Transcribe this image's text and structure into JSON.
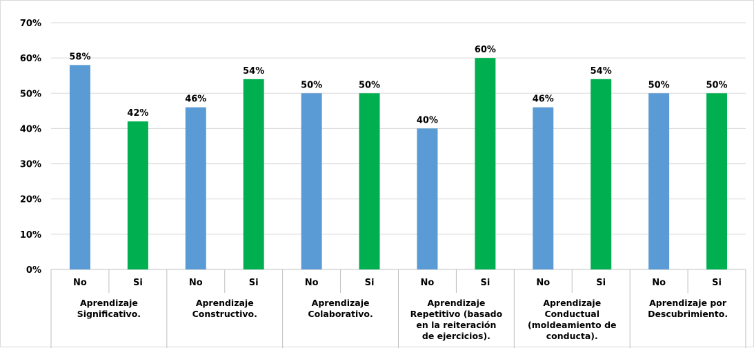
{
  "chart_data": {
    "type": "bar",
    "yticks": [
      "0%",
      "10%",
      "20%",
      "30%",
      "40%",
      "50%",
      "60%",
      "70%"
    ],
    "ylim": [
      0,
      70
    ],
    "grid": true,
    "series_colors": {
      "No": "#5b9bd5",
      "Si": "#00b050"
    },
    "groups": [
      {
        "label_lines": [
          "Aprendizaje",
          "Significativo."
        ],
        "bars": [
          {
            "category": "No",
            "value": 58,
            "label": "58%"
          },
          {
            "category": "Si",
            "value": 42,
            "label": "42%"
          }
        ]
      },
      {
        "label_lines": [
          "Aprendizaje",
          "Constructivo."
        ],
        "bars": [
          {
            "category": "No",
            "value": 46,
            "label": "46%"
          },
          {
            "category": "Si",
            "value": 54,
            "label": "54%"
          }
        ]
      },
      {
        "label_lines": [
          "Aprendizaje",
          "Colaborativo."
        ],
        "bars": [
          {
            "category": "No",
            "value": 50,
            "label": "50%"
          },
          {
            "category": "Si",
            "value": 50,
            "label": "50%"
          }
        ]
      },
      {
        "label_lines": [
          "Aprendizaje",
          "Repetitivo (basado",
          "en la reiteración",
          "de ejercicios)."
        ],
        "bars": [
          {
            "category": "No",
            "value": 40,
            "label": "40%"
          },
          {
            "category": "Si",
            "value": 60,
            "label": "60%"
          }
        ]
      },
      {
        "label_lines": [
          "Aprendizaje",
          "Conductual",
          "(moldeamiento de",
          "conducta)."
        ],
        "bars": [
          {
            "category": "No",
            "value": 46,
            "label": "46%"
          },
          {
            "category": "Si",
            "value": 54,
            "label": "54%"
          }
        ]
      },
      {
        "label_lines": [
          "Aprendizaje por",
          "Descubrimiento."
        ],
        "bars": [
          {
            "category": "No",
            "value": 50,
            "label": "50%"
          },
          {
            "category": "Si",
            "value": 50,
            "label": "50%"
          }
        ]
      }
    ]
  }
}
